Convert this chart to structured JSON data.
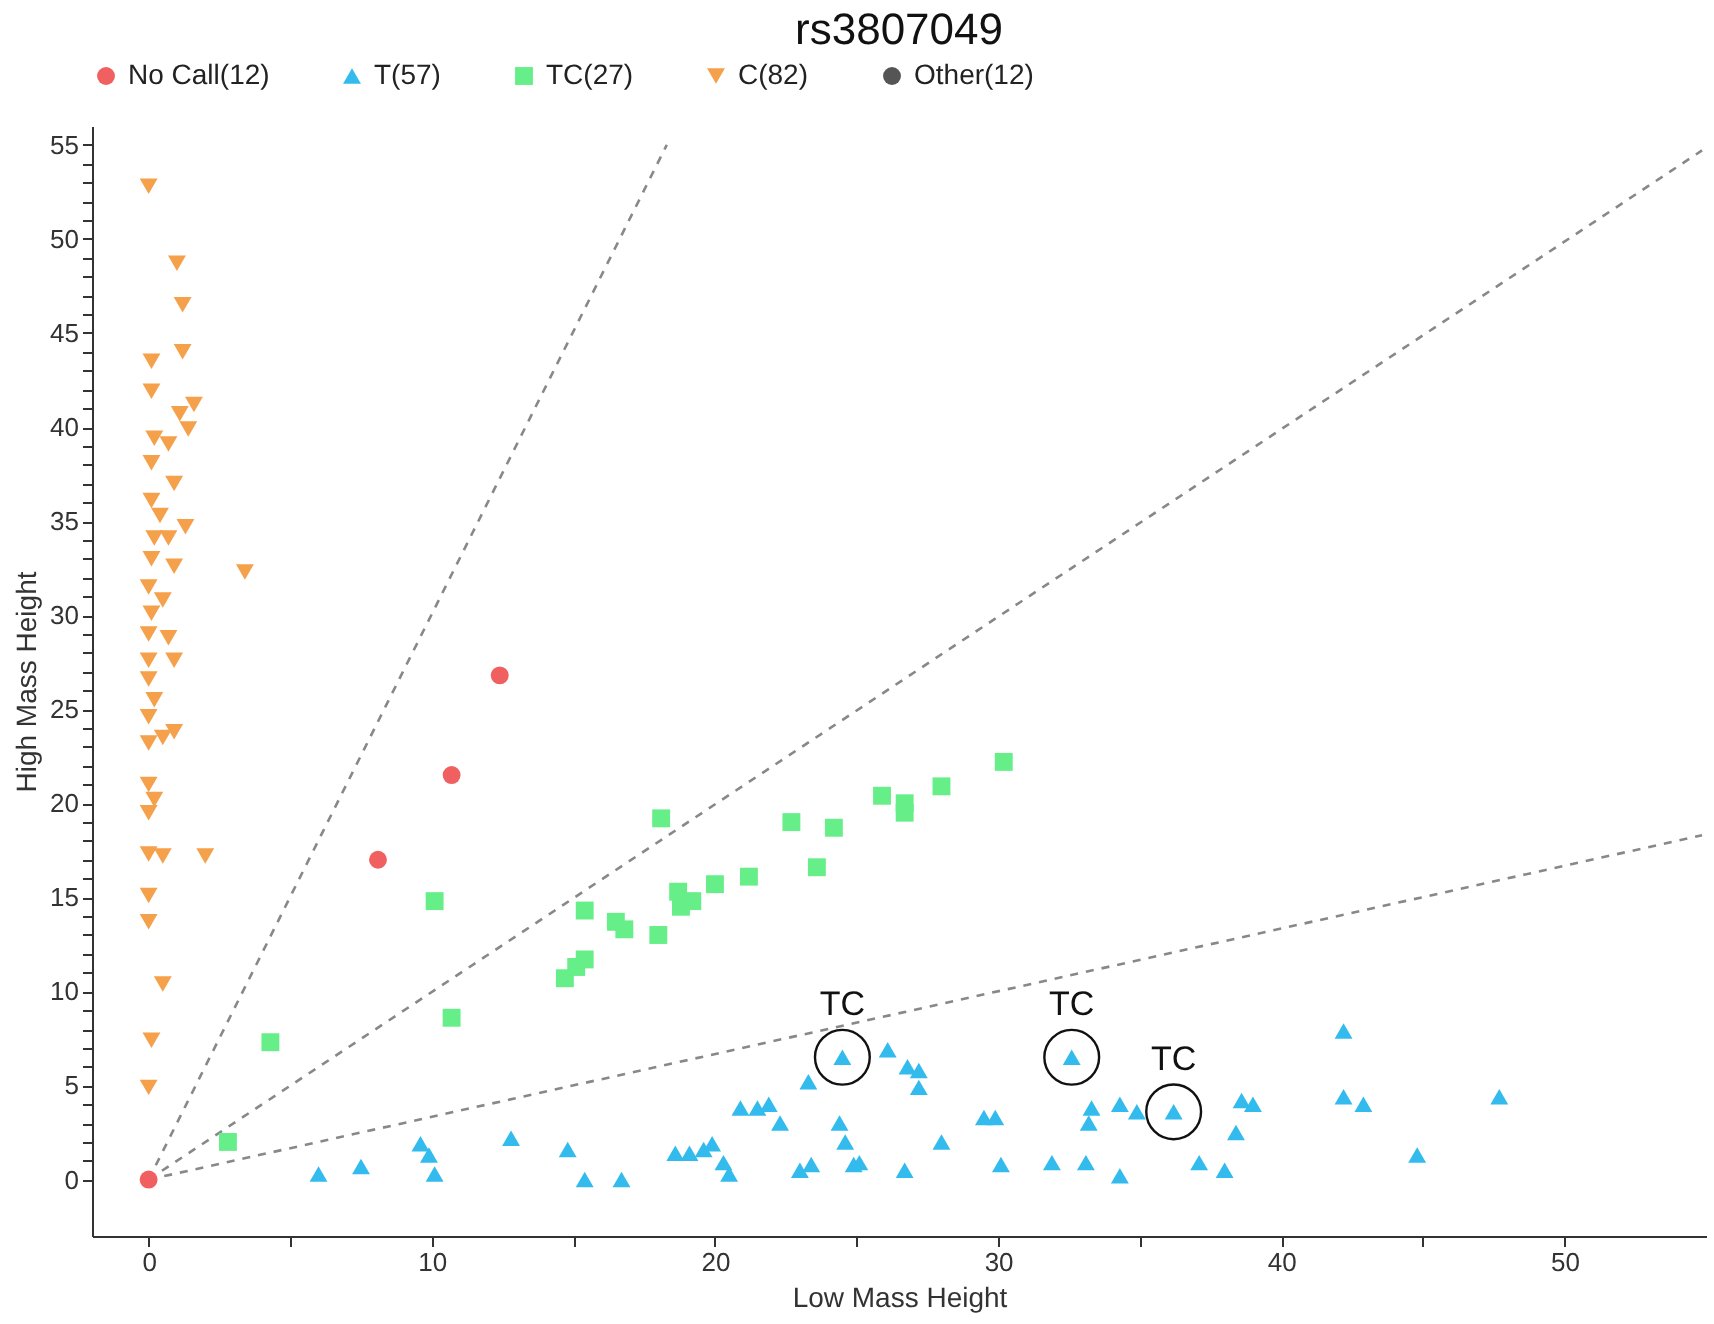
{
  "chart_data": {
    "type": "scatter",
    "title": "rs3807049",
    "xlabel": "Low Mass Height",
    "ylabel": "High Mass Height",
    "xlim": [
      -2,
      55
    ],
    "ylim": [
      -3,
      56
    ],
    "xticks": [
      0,
      {
        "value": 5,
        "label": null
      },
      10,
      {
        "value": 15,
        "label": null
      },
      20,
      {
        "value": 25,
        "label": null
      },
      30,
      {
        "value": 35,
        "label": null
      },
      40,
      {
        "value": 45,
        "label": null
      },
      50
    ],
    "yticks": [
      0,
      {
        "value": 1,
        "label": null
      },
      {
        "value": 2,
        "label": null
      },
      {
        "value": 3,
        "label": null
      },
      {
        "value": 4,
        "label": null
      },
      5,
      {
        "value": 6,
        "label": null
      },
      {
        "value": 7,
        "label": null
      },
      {
        "value": 8,
        "label": null
      },
      {
        "value": 9,
        "label": null
      },
      10,
      {
        "value": 11,
        "label": null
      },
      {
        "value": 12,
        "label": null
      },
      {
        "value": 13,
        "label": null
      },
      {
        "value": 14,
        "label": null
      },
      15,
      {
        "value": 16,
        "label": null
      },
      {
        "value": 17,
        "label": null
      },
      {
        "value": 18,
        "label": null
      },
      {
        "value": 19,
        "label": null
      },
      20,
      {
        "value": 21,
        "label": null
      },
      {
        "value": 22,
        "label": null
      },
      {
        "value": 23,
        "label": null
      },
      {
        "value": 24,
        "label": null
      },
      25,
      {
        "value": 26,
        "label": null
      },
      {
        "value": 27,
        "label": null
      },
      {
        "value": 28,
        "label": null
      },
      {
        "value": 29,
        "label": null
      },
      30,
      {
        "value": 31,
        "label": null
      },
      {
        "value": 32,
        "label": null
      },
      {
        "value": 33,
        "label": null
      },
      {
        "value": 34,
        "label": null
      },
      35,
      {
        "value": 36,
        "label": null
      },
      {
        "value": 37,
        "label": null
      },
      {
        "value": 38,
        "label": null
      },
      {
        "value": 39,
        "label": null
      },
      40,
      {
        "value": 41,
        "label": null
      },
      {
        "value": 42,
        "label": null
      },
      {
        "value": 43,
        "label": null
      },
      {
        "value": 44,
        "label": null
      },
      45,
      {
        "value": 46,
        "label": null
      },
      {
        "value": 47,
        "label": null
      },
      {
        "value": 48,
        "label": null
      },
      {
        "value": 49,
        "label": null
      },
      50,
      {
        "value": 51,
        "label": null
      },
      {
        "value": 52,
        "label": null
      },
      {
        "value": 53,
        "label": null
      },
      {
        "value": 54,
        "label": null
      },
      55
    ],
    "legend": "top",
    "grid": false,
    "series": [
      {
        "type": "line",
        "color": "#888888",
        "line_style": "dashed",
        "marker": "none",
        "x": [
          0,
          18.3
        ],
        "values": [
          0,
          55
        ]
      },
      {
        "type": "line",
        "color": "#888888",
        "line_style": "dashed",
        "marker": "none",
        "x": [
          0,
          54.86
        ],
        "values": [
          0,
          54.7
        ]
      },
      {
        "type": "line",
        "color": "#888888",
        "line_style": "dashed",
        "marker": "none",
        "x": [
          0,
          54.86
        ],
        "values": [
          0,
          18.3
        ]
      },
      {
        "name": "No Call(12)",
        "color": "#f06060",
        "marker": "circle",
        "x": [
          0,
          8.1,
          10.7,
          12.4
        ],
        "values": [
          0,
          17.0,
          21.5,
          26.8
        ]
      },
      {
        "name": "T(57)",
        "color": "#33bbee",
        "marker": "triangle",
        "x": [
          6.0,
          7.5,
          9.6,
          9.9,
          10.1,
          12.8,
          14.8,
          15.4,
          16.7,
          18.6,
          19.1,
          19.6,
          19.9,
          20.3,
          20.5,
          20.9,
          21.5,
          21.9,
          22.3,
          23.0,
          23.4,
          23.3,
          24.5,
          24.4,
          24.6,
          24.9,
          25.1,
          26.1,
          26.8,
          27.2,
          27.2,
          26.7,
          28.0,
          29.5,
          29.9,
          30.1,
          31.9,
          32.6,
          33.1,
          33.3,
          33.2,
          34.3,
          34.3,
          34.9,
          36.2,
          37.1,
          38.0,
          38.4,
          38.6,
          39.0,
          42.2,
          42.2,
          42.9,
          44.8,
          47.7
        ],
        "values": [
          0.3,
          0.7,
          1.9,
          1.3,
          0.3,
          2.2,
          1.6,
          0,
          0,
          1.4,
          1.4,
          1.6,
          1.9,
          0.9,
          0.3,
          3.8,
          3.8,
          4.0,
          3.0,
          0.5,
          0.8,
          5.2,
          6.5,
          3.0,
          2.0,
          0.8,
          0.9,
          6.9,
          6.0,
          5.8,
          4.9,
          0.5,
          2.0,
          3.3,
          3.3,
          0.8,
          0.9,
          6.5,
          0.9,
          3.8,
          3.0,
          4.0,
          0.2,
          3.6,
          3.6,
          0.9,
          0.5,
          2.5,
          4.2,
          4.0,
          7.9,
          4.4,
          4.0,
          1.3,
          4.4
        ]
      },
      {
        "name": "TC(27)",
        "color": "#66ee88",
        "marker": "square",
        "x": [
          2.8,
          4.3,
          10.1,
          10.7,
          15.4,
          14.7,
          15.1,
          15.4,
          16.5,
          16.8,
          18.0,
          18.1,
          18.7,
          18.8,
          19.2,
          20.0,
          21.2,
          22.7,
          23.6,
          24.2,
          25.9,
          26.7,
          26.7,
          28.0,
          30.2
        ],
        "values": [
          2.0,
          7.3,
          14.8,
          8.6,
          14.3,
          10.7,
          11.3,
          11.7,
          13.7,
          13.3,
          13.0,
          19.2,
          15.3,
          14.5,
          14.8,
          15.7,
          16.1,
          19.0,
          16.6,
          18.7,
          20.4,
          20.0,
          19.5,
          20.9,
          22.2
        ]
      },
      {
        "name": "C(82)",
        "color": "#f5a04a",
        "marker": "triangle-down",
        "x": [
          0,
          1.0,
          1.2,
          1.2,
          0.1,
          0.1,
          1.6,
          1.1,
          1.4,
          0.2,
          0.1,
          0.7,
          0.9,
          0.1,
          0.4,
          1.3,
          0.2,
          0.7,
          0.1,
          0.9,
          3.4,
          0,
          0.5,
          0.1,
          0,
          0.7,
          0.9,
          0,
          0,
          0.2,
          0,
          0.9,
          0,
          0.5,
          0,
          0.2,
          0,
          0,
          0.5,
          2.0,
          0,
          0,
          0.5,
          0.1,
          0
        ],
        "values": [
          52.8,
          48.7,
          46.5,
          44.0,
          43.5,
          41.9,
          41.2,
          40.7,
          39.9,
          39.4,
          38.1,
          39.1,
          37.0,
          36.1,
          35.3,
          34.7,
          34.1,
          34.1,
          33.0,
          32.6,
          32.3,
          31.5,
          30.8,
          30.1,
          29.0,
          28.8,
          27.6,
          27.6,
          26.6,
          25.5,
          24.6,
          23.8,
          23.2,
          23.5,
          21.0,
          20.2,
          19.5,
          17.3,
          17.2,
          17.2,
          15.1,
          13.7,
          10.4,
          7.4,
          4.9
        ]
      },
      {
        "name": "Other(12)",
        "color": "#555555",
        "marker": "circle"
      }
    ],
    "annotations": [
      {
        "text": "TC",
        "x": 24.5,
        "y": 6.5
      },
      {
        "text": "TC",
        "x": 32.6,
        "y": 6.5
      },
      {
        "text": "TC",
        "x": 36.2,
        "y": 3.6
      }
    ]
  }
}
